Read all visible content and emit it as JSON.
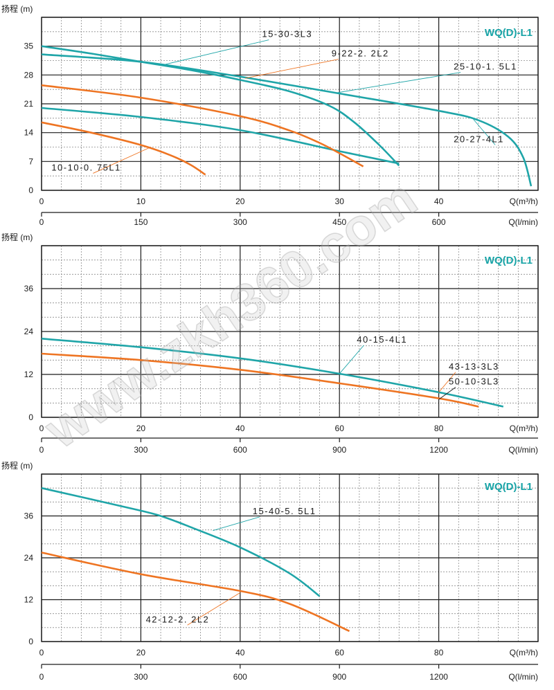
{
  "watermark": "www.zkh360.com",
  "colors": {
    "teal": "#1fa5a8",
    "orange": "#ee7422",
    "grid_major": "#1a1a1a",
    "grid_minor": "#8a8a8a",
    "brand": "#17a3a6"
  },
  "chart_data": [
    {
      "type": "line",
      "title": "WQ(D)-L1",
      "ylabel": "扬程 (m)",
      "xlabel": "Q(m³/h)",
      "x2label": "Q(l/min)",
      "xlim": [
        0,
        50
      ],
      "ylim": [
        0,
        42
      ],
      "yticks": [
        0,
        7,
        14,
        21,
        28,
        35
      ],
      "xticks": [
        0,
        10,
        20,
        30,
        40
      ],
      "x2ticks": [
        0,
        150,
        300,
        450,
        600
      ],
      "series": [
        {
          "name": "15-30-3L3",
          "color": "teal",
          "points": [
            [
              0,
              35
            ],
            [
              5,
              33.2
            ],
            [
              10,
              31.2
            ],
            [
              15,
              29.2
            ],
            [
              20,
              26.8
            ],
            [
              25,
              24
            ],
            [
              29,
              20.5
            ],
            [
              31.5,
              16.5
            ],
            [
              34,
              11
            ],
            [
              36,
              6
            ]
          ]
        },
        {
          "name": "25-10-1. 5L1",
          "color": "teal",
          "points": [
            [
              0,
              33
            ],
            [
              10,
              31.2
            ],
            [
              20,
              27.6
            ],
            [
              30,
              23.5
            ],
            [
              40,
              19.3
            ],
            [
              44,
              17
            ],
            [
              47,
              13
            ],
            [
              48.5,
              8
            ],
            [
              49.3,
              1
            ]
          ]
        },
        {
          "name": "20-27-4L1",
          "color": "teal",
          "points": [
            [
              0,
              20
            ],
            [
              10,
              17.8
            ],
            [
              20,
              14.6
            ],
            [
              30,
              9.5
            ],
            [
              35,
              7
            ],
            [
              36,
              6.5
            ]
          ]
        },
        {
          "name": "9-22-2. 2L2",
          "color": "orange",
          "points": [
            [
              0,
              25.5
            ],
            [
              10,
              22.5
            ],
            [
              20,
              18
            ],
            [
              25,
              14.5
            ],
            [
              28,
              11.5
            ],
            [
              30,
              9
            ],
            [
              32.4,
              5.8
            ]
          ]
        },
        {
          "name": "10-10-0. 75L1",
          "color": "orange",
          "points": [
            [
              0,
              16.5
            ],
            [
              5,
              14
            ],
            [
              10,
              11
            ],
            [
              13,
              8.5
            ],
            [
              15,
              6.2
            ],
            [
              16.5,
              3.8
            ]
          ]
        }
      ],
      "annotations": [
        {
          "text": "15-30-3L3",
          "x": 22.2,
          "y": 37.2,
          "ax": 12.5,
          "ay": 30.6
        },
        {
          "text": "9-22-2. 2L2",
          "x": 29.2,
          "y": 32.5,
          "ax": 20.5,
          "ay": 27.2
        },
        {
          "text": "25-10-1. 5L1",
          "x": 41.5,
          "y": 29.3,
          "ax": 29.5,
          "ay": 23.6
        },
        {
          "text": "20-27-4L1",
          "x": 41.5,
          "y": 11.7,
          "ax": 43.5,
          "ay": 17.2
        },
        {
          "text": "10-10-0. 75L1",
          "x": 1,
          "y": 4.8,
          "ax": 11,
          "ay": 10.5
        }
      ]
    },
    {
      "type": "line",
      "title": "WQ(D)-L1",
      "ylabel": "扬程 (m)",
      "xlabel": "Q(m³/h)",
      "x2label": "Q(l/min)",
      "xlim": [
        0,
        100
      ],
      "ylim": [
        0,
        48
      ],
      "yticks": [
        0,
        12,
        24,
        36
      ],
      "xticks": [
        0,
        20,
        40,
        60,
        80
      ],
      "x2ticks": [
        0,
        300,
        600,
        900,
        1200
      ],
      "series": [
        {
          "name": "40-15-4L1",
          "color": "teal",
          "points": [
            [
              0,
              22
            ],
            [
              20,
              19.6
            ],
            [
              40,
              16.5
            ],
            [
              60,
              12.2
            ],
            [
              80,
              7
            ],
            [
              93,
              3
            ]
          ]
        },
        {
          "name": "43-13-3L3",
          "color": "orange",
          "points": [
            [
              0,
              17.8
            ],
            [
              20,
              16
            ],
            [
              40,
              13.3
            ],
            [
              60,
              9.5
            ],
            [
              80,
              5.3
            ],
            [
              88,
              3
            ]
          ]
        }
      ],
      "annotations": [
        {
          "text": "40-15-4L1",
          "x": 63.5,
          "y": 20.9,
          "ax": 60,
          "ay": 12.2
        },
        {
          "text": "43-13-3L3",
          "x": 82,
          "y": 13.4,
          "ax": 80,
          "ay": 7
        },
        {
          "text": "50-10-3L3",
          "x": 82,
          "y": 9.2,
          "ax": 80,
          "ay": 5
        }
      ]
    },
    {
      "type": "line",
      "title": "WQ(D)-L1",
      "ylabel": "扬程 (m)",
      "xlabel": "Q(m³/h)",
      "x2label": "Q(l/min)",
      "xlim": [
        0,
        100
      ],
      "ylim": [
        0,
        48
      ],
      "yticks": [
        0,
        12,
        24,
        36
      ],
      "xticks": [
        0,
        20,
        40,
        60,
        80
      ],
      "x2ticks": [
        0,
        300,
        600,
        900,
        1200
      ],
      "series": [
        {
          "name": "15-40-5. 5L1",
          "color": "teal",
          "points": [
            [
              0,
              44
            ],
            [
              20,
              37.5
            ],
            [
              25,
              35.5
            ],
            [
              30,
              32.8
            ],
            [
              40,
              27
            ],
            [
              50,
              19.5
            ],
            [
              56,
              13
            ]
          ]
        },
        {
          "name": "42-12-2. 2L2",
          "color": "orange",
          "points": [
            [
              0,
              25.5
            ],
            [
              20,
              19.3
            ],
            [
              40,
              14.5
            ],
            [
              50,
              10.8
            ],
            [
              62,
              3
            ]
          ]
        }
      ],
      "annotations": [
        {
          "text": "15-40-5. 5L1",
          "x": 42.5,
          "y": 36.5,
          "ax": 34.5,
          "ay": 31.8
        },
        {
          "text": "42-12-2. 2L2",
          "x": 21,
          "y": 5.5,
          "ax": 40,
          "ay": 14
        }
      ]
    }
  ]
}
